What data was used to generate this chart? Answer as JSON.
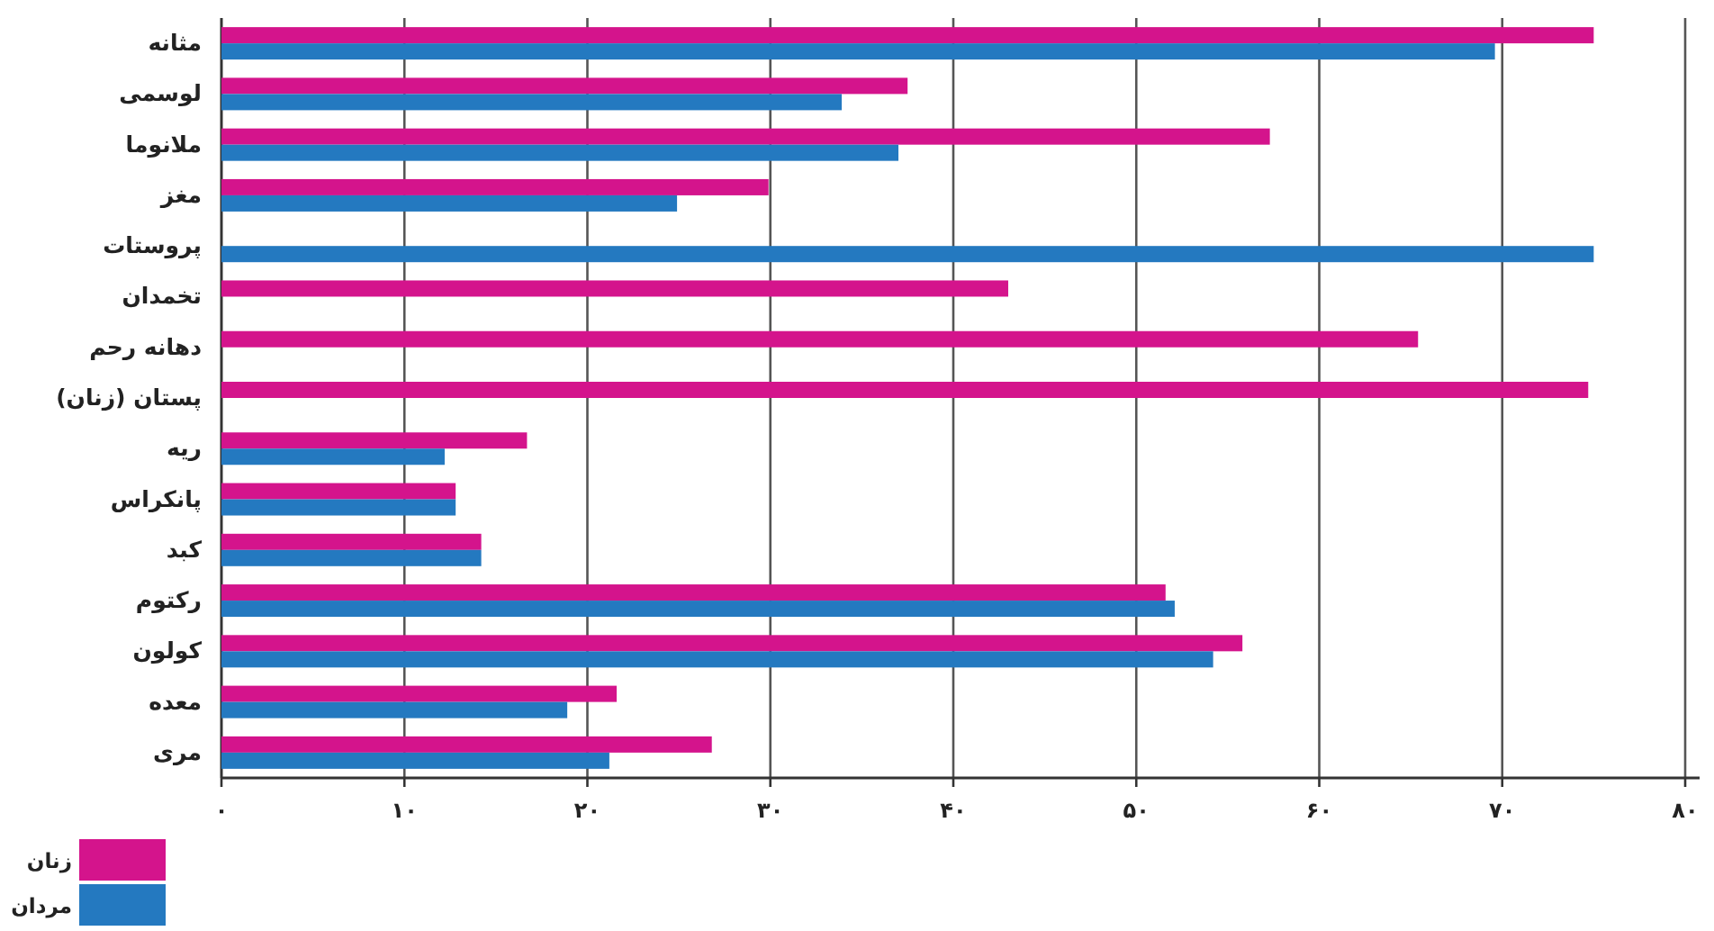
{
  "chart_data": {
    "type": "bar",
    "orientation": "horizontal",
    "categories": [
      "مثانه",
      "لوسمی",
      "ملانوما",
      "مغز",
      "پروستات",
      "تخمدان",
      "دهانه رحم",
      "پستان (زنان)",
      "ریه",
      "پانکراس",
      "کبد",
      "رکتوم",
      "کولون",
      "معده",
      "مری"
    ],
    "series": [
      {
        "name": "زنان",
        "color": "#d4148c",
        "values": [
          75.0,
          37.5,
          57.3,
          29.9,
          null,
          43.0,
          65.4,
          74.7,
          16.7,
          12.8,
          14.2,
          51.6,
          55.8,
          21.6,
          26.8
        ]
      },
      {
        "name": "مردان",
        "color": "#2479c0",
        "values": [
          69.6,
          33.9,
          37.0,
          24.9,
          75.0,
          null,
          null,
          null,
          12.2,
          12.8,
          14.2,
          52.1,
          54.2,
          18.9,
          21.2
        ]
      }
    ],
    "xlim": [
      0,
      80
    ],
    "xticks": [
      {
        "value": 0,
        "label": "۰"
      },
      {
        "value": 10,
        "label": "۱۰"
      },
      {
        "value": 20,
        "label": "۲۰"
      },
      {
        "value": 30,
        "label": "۳۰"
      },
      {
        "value": 40,
        "label": "۴۰"
      },
      {
        "value": 50,
        "label": "۵۰"
      },
      {
        "value": 60,
        "label": "۶۰"
      },
      {
        "value": 70,
        "label": "۷۰"
      },
      {
        "value": 80,
        "label": "۸۰"
      }
    ],
    "grid": "x",
    "legend": "bottom left"
  }
}
